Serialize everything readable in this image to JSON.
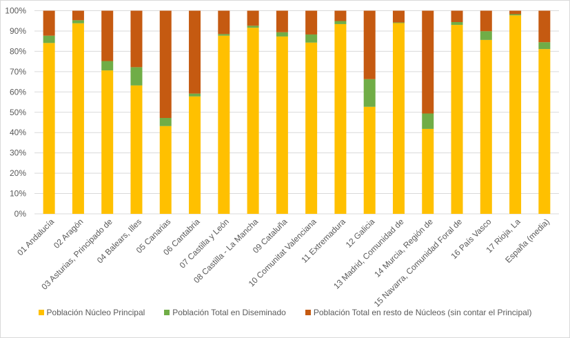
{
  "chart_data": {
    "type": "bar",
    "stacked": "percent",
    "title": "",
    "xlabel": "",
    "ylabel": "",
    "ylim": [
      0,
      100
    ],
    "yticks": [
      "0%",
      "10%",
      "20%",
      "30%",
      "40%",
      "50%",
      "60%",
      "70%",
      "80%",
      "90%",
      "100%"
    ],
    "grid": true,
    "legend_position": "bottom",
    "categories": [
      "01 Andalucía",
      "02 Aragón",
      "03 Asturias, Principado de",
      "04 Balears, Illes",
      "05 Canarias",
      "06 Cantabria",
      "07 Castilla y León",
      "08 Castilla - La Mancha",
      "09 Cataluña",
      "10 Comunitat Valenciana",
      "11 Extremadura",
      "12 Galicia",
      "13 Madrid, Comunidad de",
      "14 Murcia, Región de",
      "15 Navarra, Comunidad Foral de",
      "16 País Vasco",
      "17 Rioja, La",
      "España (media)"
    ],
    "series": [
      {
        "name": "Población Núcleo Principal",
        "color": "#FFC000",
        "values": [
          84.1,
          93.8,
          70.6,
          63.2,
          43.2,
          57.8,
          87.7,
          91.6,
          87.3,
          84.3,
          93.4,
          52.7,
          93.9,
          41.8,
          93.0,
          85.6,
          97.7,
          81.1
        ]
      },
      {
        "name": "Población Total en Diseminado",
        "color": "#70AD47",
        "values": [
          3.6,
          1.5,
          4.6,
          9.0,
          4.0,
          1.4,
          0.8,
          1.0,
          2.1,
          4.0,
          1.5,
          13.6,
          0.3,
          7.6,
          1.4,
          4.3,
          0.6,
          3.4
        ]
      },
      {
        "name": "Población Total en resto de Núcleos (sin contar el Principal)",
        "color": "#C55A11",
        "values": [
          12.3,
          4.7,
          24.8,
          27.8,
          52.8,
          40.8,
          11.5,
          7.4,
          10.6,
          11.7,
          5.1,
          33.7,
          5.8,
          50.6,
          5.6,
          10.1,
          1.7,
          15.5
        ]
      }
    ]
  }
}
